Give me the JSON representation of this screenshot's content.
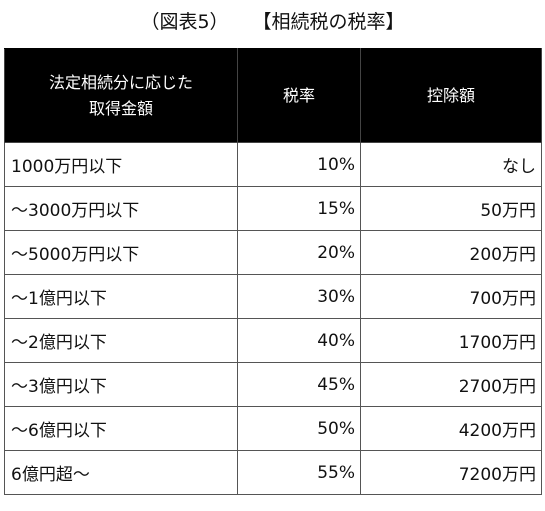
{
  "caption": {
    "figure": "（図表5）",
    "title": "【相続税の税率】"
  },
  "table": {
    "headers": {
      "range_line1": "法定相続分に応じた",
      "range_line2": "取得金額",
      "rate": "税率",
      "deduction": "控除額"
    },
    "rows": [
      {
        "range": "1000万円以下",
        "rate": "10%",
        "deduction": "なし"
      },
      {
        "range": "～3000万円以下",
        "rate": "15%",
        "deduction": "50万円"
      },
      {
        "range": "～5000万円以下",
        "rate": "20%",
        "deduction": "200万円"
      },
      {
        "range": "～1億円以下",
        "rate": "30%",
        "deduction": "700万円"
      },
      {
        "range": "～2億円以下",
        "rate": "40%",
        "deduction": "1700万円"
      },
      {
        "range": "～3億円以下",
        "rate": "45%",
        "deduction": "2700万円"
      },
      {
        "range": "～6億円以下",
        "rate": "50%",
        "deduction": "4200万円"
      },
      {
        "range": "6億円超～",
        "rate": "55%",
        "deduction": "7200万円"
      }
    ]
  }
}
